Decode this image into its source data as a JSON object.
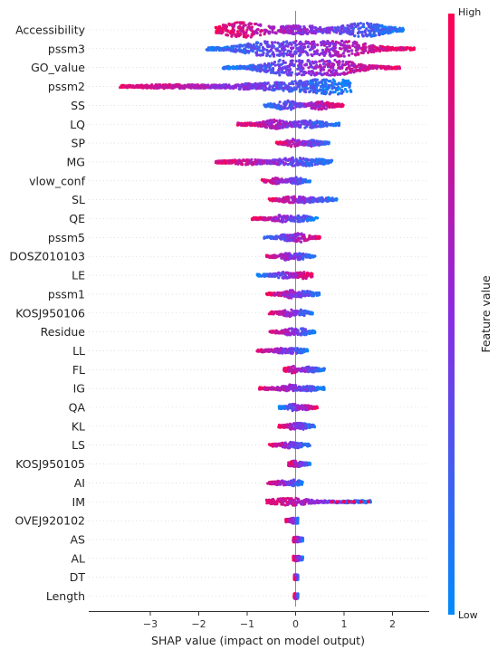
{
  "chart_data": {
    "type": "scatter",
    "subtype": "shap-beeswarm-summary",
    "xlabel": "SHAP value (impact on model output)",
    "xlim": [
      -3.9,
      2.75
    ],
    "xticks": [
      -3,
      -2,
      -1,
      0,
      1,
      2
    ],
    "colorbar": {
      "title": "Feature value",
      "high_label": "High",
      "low_label": "Low",
      "high_color": "#ff0052",
      "mid_color": "#8a2be2",
      "low_color": "#008bfb"
    },
    "features": [
      {
        "name": "Accessibility",
        "min": -1.65,
        "max": 2.25,
        "high_side": "left",
        "peaks": [
          [
            -1.1,
            1.0
          ],
          [
            1.4,
            0.85
          ],
          [
            0.1,
            0.45
          ]
        ]
      },
      {
        "name": "pssm3",
        "min": -1.85,
        "max": 2.45,
        "high_side": "right",
        "peaks": [
          [
            -0.6,
            0.9
          ],
          [
            1.0,
            1.0
          ],
          [
            0.2,
            0.7
          ]
        ]
      },
      {
        "name": "GO_value",
        "min": -1.5,
        "max": 2.15,
        "high_side": "right",
        "peaks": [
          [
            -0.3,
            0.8
          ],
          [
            0.9,
            0.8
          ],
          [
            0.25,
            0.7
          ]
        ]
      },
      {
        "name": "pssm2",
        "min": -3.65,
        "max": 1.15,
        "high_side": "left",
        "peaks": [
          [
            0.85,
            0.85
          ],
          [
            0.1,
            0.45
          ],
          [
            -0.8,
            0.25
          ],
          [
            -2.5,
            0.12
          ]
        ]
      },
      {
        "name": "SS",
        "min": -0.65,
        "max": 1.0,
        "high_side": "right",
        "peaks": [
          [
            -0.2,
            0.55
          ],
          [
            0.5,
            0.45
          ]
        ]
      },
      {
        "name": "LQ",
        "min": -1.2,
        "max": 0.9,
        "high_side": "left",
        "peaks": [
          [
            -0.4,
            0.5
          ],
          [
            0.3,
            0.4
          ]
        ]
      },
      {
        "name": "SP",
        "min": -0.4,
        "max": 0.7,
        "high_side": "left",
        "peaks": [
          [
            -0.05,
            0.45
          ],
          [
            0.35,
            0.3
          ]
        ]
      },
      {
        "name": "MG",
        "min": -1.65,
        "max": 0.75,
        "high_side": "left",
        "peaks": [
          [
            -0.1,
            0.4
          ],
          [
            0.35,
            0.3
          ],
          [
            -1.0,
            0.22
          ]
        ]
      },
      {
        "name": "vlow_conf",
        "min": -0.7,
        "max": 0.3,
        "high_side": "left",
        "peaks": [
          [
            0.0,
            0.35
          ],
          [
            -0.4,
            0.25
          ]
        ]
      },
      {
        "name": "SL",
        "min": -0.55,
        "max": 0.85,
        "high_side": "left",
        "peaks": [
          [
            -0.1,
            0.3
          ],
          [
            0.2,
            0.25
          ],
          [
            0.6,
            0.15
          ]
        ]
      },
      {
        "name": "QE",
        "min": -0.9,
        "max": 0.45,
        "high_side": "left",
        "peaks": [
          [
            -0.3,
            0.35
          ],
          [
            0.1,
            0.3
          ]
        ]
      },
      {
        "name": "pssm5",
        "min": -0.65,
        "max": 0.5,
        "high_side": "right",
        "peaks": [
          [
            -0.2,
            0.3
          ],
          [
            0.1,
            0.5
          ]
        ]
      },
      {
        "name": "DOSZ010103",
        "min": -0.6,
        "max": 0.4,
        "high_side": "left",
        "peaks": [
          [
            -0.2,
            0.35
          ],
          [
            0.1,
            0.3
          ]
        ]
      },
      {
        "name": "LE",
        "min": -0.8,
        "max": 0.35,
        "high_side": "right",
        "peaks": [
          [
            -0.25,
            0.3
          ],
          [
            0.15,
            0.35
          ]
        ]
      },
      {
        "name": "pssm1",
        "min": -0.6,
        "max": 0.5,
        "high_side": "left",
        "peaks": [
          [
            -0.1,
            0.4
          ],
          [
            0.2,
            0.3
          ]
        ]
      },
      {
        "name": "KOSJ950106",
        "min": -0.55,
        "max": 0.35,
        "high_side": "left",
        "peaks": [
          [
            -0.15,
            0.35
          ],
          [
            0.1,
            0.3
          ]
        ]
      },
      {
        "name": "Residue",
        "min": -0.55,
        "max": 0.4,
        "high_side": "left",
        "peaks": [
          [
            -0.1,
            0.35
          ],
          [
            0.15,
            0.3
          ]
        ]
      },
      {
        "name": "LL",
        "min": -0.8,
        "max": 0.25,
        "high_side": "left",
        "peaks": [
          [
            0.0,
            0.3
          ],
          [
            -0.3,
            0.2
          ]
        ]
      },
      {
        "name": "FL",
        "min": -0.25,
        "max": 0.6,
        "high_side": "left",
        "peaks": [
          [
            -0.05,
            0.35
          ],
          [
            0.3,
            0.25
          ]
        ]
      },
      {
        "name": "IG",
        "min": -0.75,
        "max": 0.6,
        "high_side": "left",
        "peaks": [
          [
            -0.1,
            0.4
          ],
          [
            0.3,
            0.2
          ]
        ]
      },
      {
        "name": "QA",
        "min": -0.35,
        "max": 0.45,
        "high_side": "right",
        "peaks": [
          [
            -0.05,
            0.35
          ],
          [
            0.2,
            0.25
          ]
        ]
      },
      {
        "name": "KL",
        "min": -0.35,
        "max": 0.4,
        "high_side": "left",
        "peaks": [
          [
            -0.05,
            0.35
          ],
          [
            0.15,
            0.25
          ]
        ]
      },
      {
        "name": "LS",
        "min": -0.55,
        "max": 0.3,
        "high_side": "left",
        "peaks": [
          [
            0.0,
            0.35
          ],
          [
            -0.2,
            0.2
          ]
        ]
      },
      {
        "name": "KOSJ950105",
        "min": -0.15,
        "max": 0.3,
        "high_side": "left",
        "peaks": [
          [
            0.0,
            0.3
          ]
        ]
      },
      {
        "name": "AI",
        "min": -0.6,
        "max": 0.15,
        "high_side": "left",
        "peaks": [
          [
            0.0,
            0.3
          ],
          [
            -0.3,
            0.15
          ]
        ]
      },
      {
        "name": "IM",
        "min": -0.6,
        "max": 1.55,
        "high_side": "left",
        "peaks": [
          [
            0.0,
            0.3
          ],
          [
            -0.35,
            0.2
          ]
        ],
        "outliers": [
          0.75,
          0.85,
          1.0,
          1.1,
          1.2,
          1.35,
          1.5
        ]
      },
      {
        "name": "OVEJ920102",
        "min": -0.2,
        "max": 0.05,
        "high_side": "left",
        "peaks": [
          [
            0.0,
            0.25
          ]
        ]
      },
      {
        "name": "AS",
        "min": -0.05,
        "max": 0.15,
        "high_side": "left",
        "peaks": [
          [
            0.0,
            0.2
          ]
        ]
      },
      {
        "name": "AL",
        "min": -0.05,
        "max": 0.15,
        "high_side": "left",
        "peaks": [
          [
            0.0,
            0.2
          ]
        ]
      },
      {
        "name": "DT",
        "min": -0.03,
        "max": 0.05,
        "high_side": "left",
        "peaks": [
          [
            0.0,
            0.2
          ]
        ]
      },
      {
        "name": "Length",
        "min": -0.03,
        "max": 0.05,
        "high_side": "left",
        "peaks": [
          [
            0.0,
            0.2
          ]
        ]
      }
    ]
  }
}
